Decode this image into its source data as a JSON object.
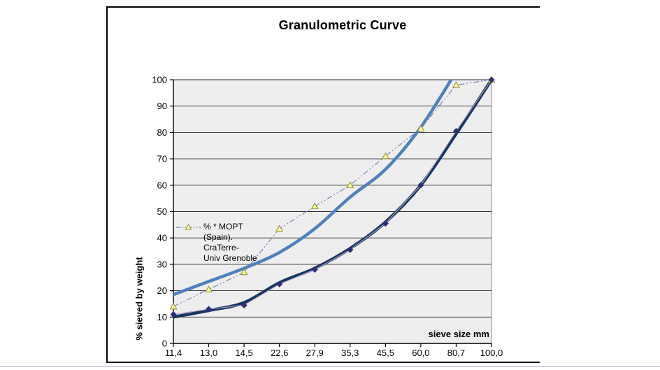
{
  "chart_data": {
    "type": "line",
    "title": "Granulometric Curve",
    "xlabel": "sieve size mm",
    "ylabel": "% sieved by weight",
    "categories": [
      "11,4",
      "13,0",
      "14,5",
      "22,6",
      "27,9",
      "35,3",
      "45,5",
      "60,0",
      "80,7",
      "100,0"
    ],
    "categories_numeric": [
      11.4,
      13.0,
      14.5,
      22.6,
      27.9,
      35.3,
      45.5,
      60.0,
      80.7,
      100.0
    ],
    "ylim": [
      0,
      100
    ],
    "y_tick_step": 10,
    "grid": "horizontal",
    "plot_bg": "#eeeeee",
    "plot_border_color": "#8c8c8c",
    "gridline_color": "#2b2b2b",
    "axis_color": "#000000",
    "legend_position": "inside-left-middle",
    "series": [
      {
        "name": "% * MOPT (Spain). CraTerre-Univ Grenoble",
        "marker": "triangle",
        "marker_fill": "#ffff99",
        "marker_stroke": "#8c8c3a",
        "line_color": "#7b7bb8",
        "line_style": "dash-dot-dot",
        "values": [
          14,
          20.5,
          27,
          43.5,
          52,
          60,
          71,
          81.5,
          98,
          100
        ]
      },
      {
        "name": "",
        "marker": "diamond",
        "marker_fill": "#2e2e78",
        "line_color": "#b2a1c7",
        "line_style": "solid",
        "values": [
          11,
          13,
          14.5,
          22.5,
          28,
          35.5,
          45.5,
          60,
          80.5,
          100
        ]
      }
    ],
    "trendlines": [
      {
        "for_series": 0,
        "color": "#4f81bd",
        "width": 4.5,
        "points": [
          [
            0,
            18.5
          ],
          [
            1,
            23.5
          ],
          [
            2,
            28.5
          ],
          [
            3,
            34.5
          ],
          [
            4,
            43.5
          ],
          [
            5,
            55.5
          ],
          [
            6,
            66
          ],
          [
            7,
            82
          ],
          [
            7.95,
            102
          ]
        ]
      },
      {
        "for_series": 1,
        "color": "#17375e",
        "width": 4.5,
        "points": [
          [
            0,
            10
          ],
          [
            1,
            12.5
          ],
          [
            2,
            15.5
          ],
          [
            3,
            23
          ],
          [
            4,
            28.5
          ],
          [
            5,
            36
          ],
          [
            6,
            46
          ],
          [
            7,
            60
          ],
          [
            8,
            79.5
          ],
          [
            9,
            100
          ]
        ]
      }
    ]
  },
  "legend": {
    "lines": [
      "%  * MOPT",
      "(Spain).",
      "CraTerre-",
      "Univ Grenoble"
    ]
  }
}
